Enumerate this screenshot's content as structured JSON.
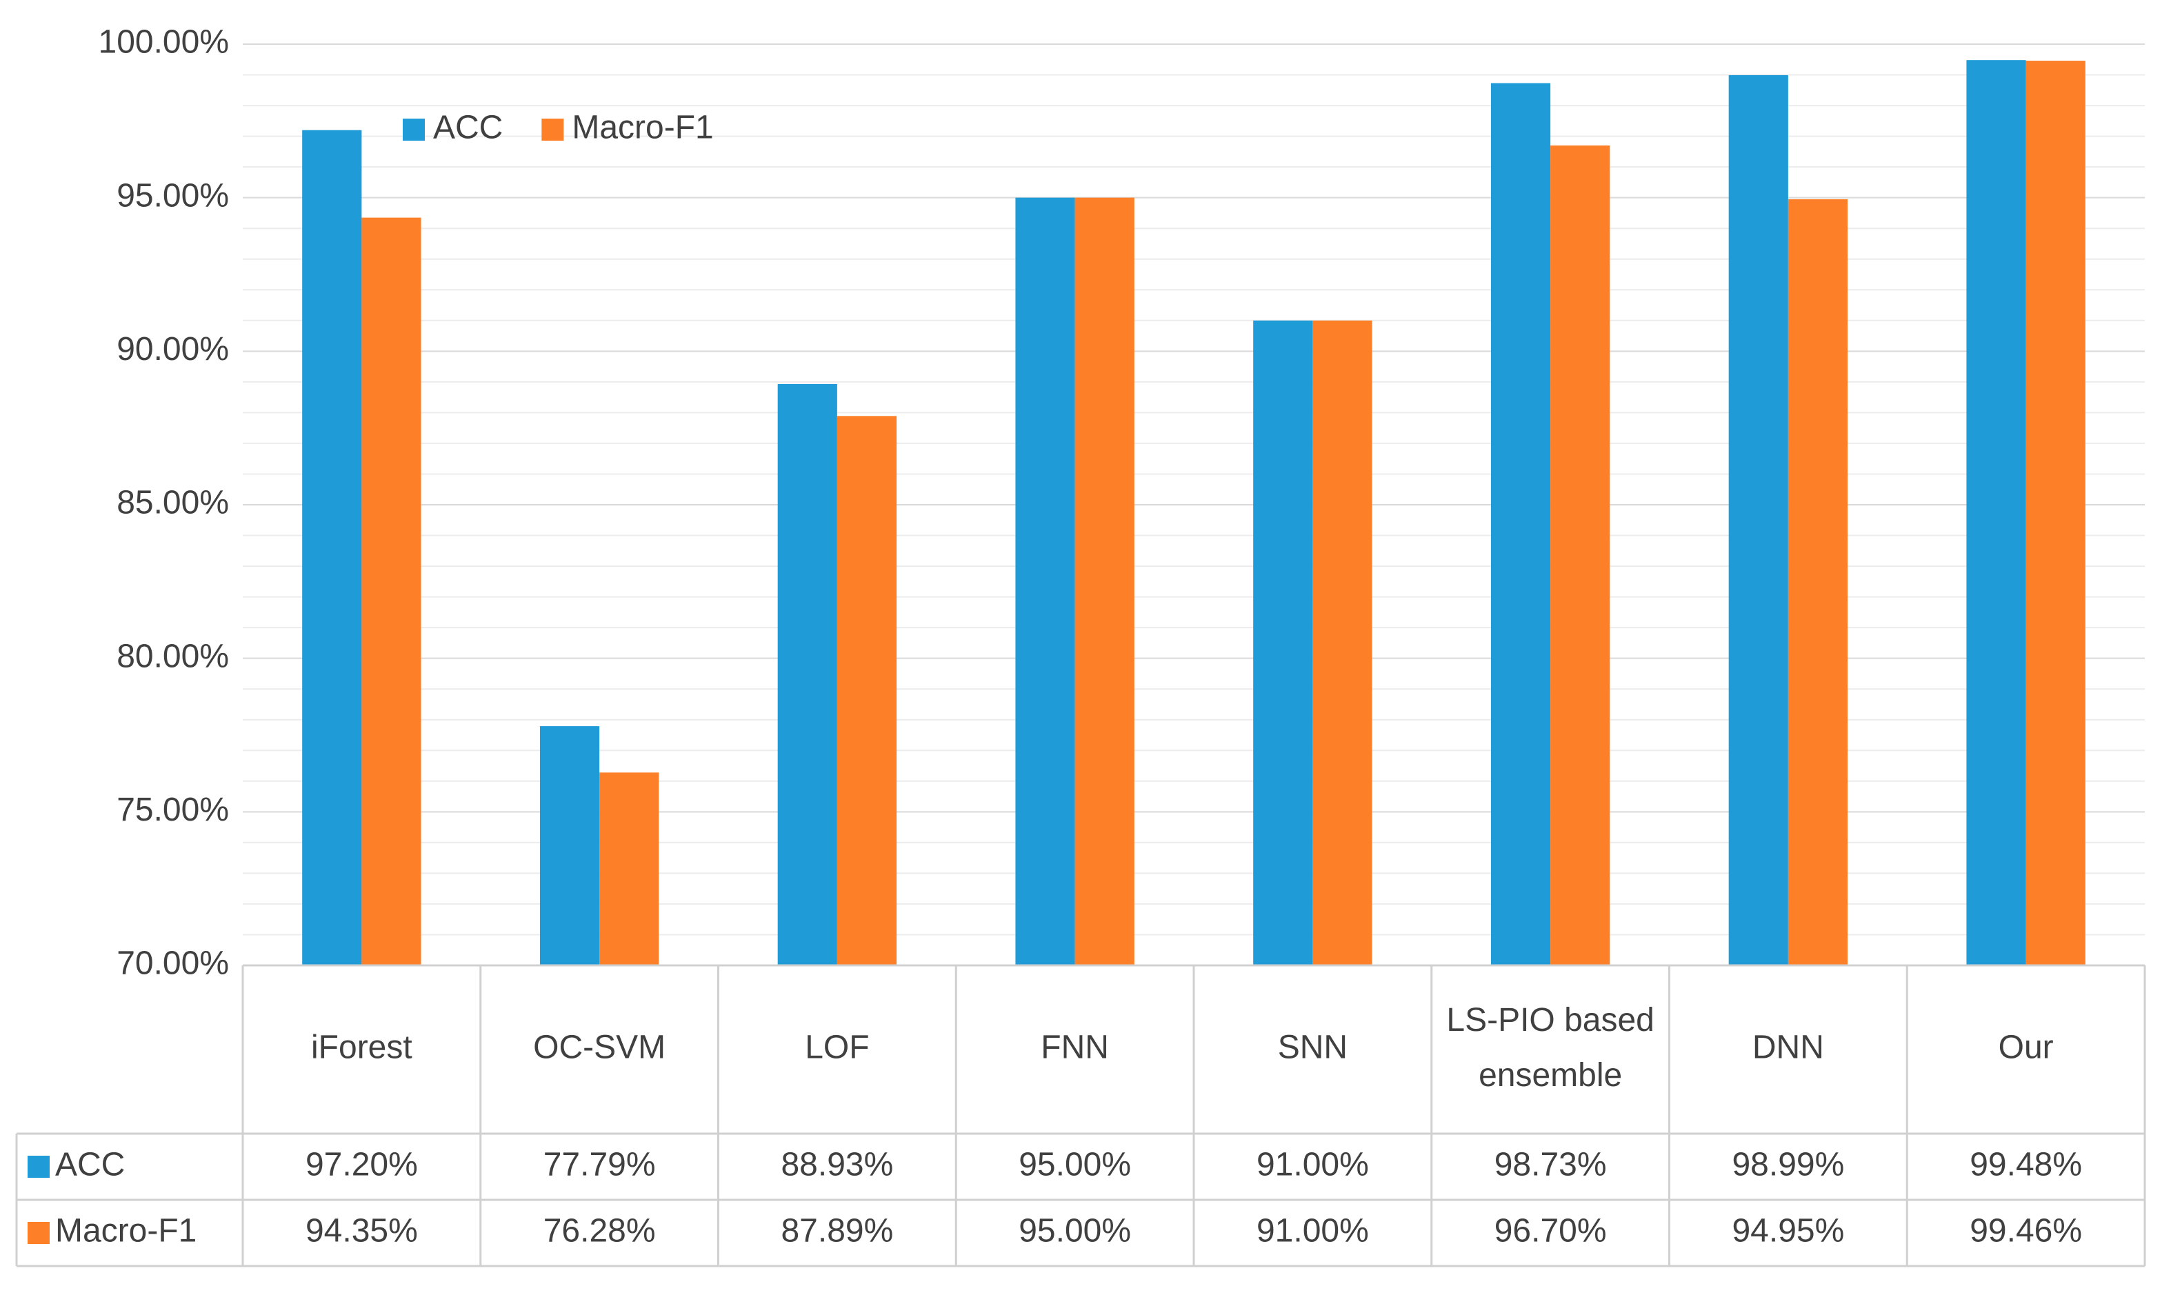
{
  "chart_data": {
    "type": "bar",
    "categories": [
      "iForest",
      "OC-SVM",
      "LOF",
      "FNN",
      "SNN",
      "LS-PIO based ensemble",
      "DNN",
      "Our"
    ],
    "series": [
      {
        "name": "ACC",
        "color": "#1f9bd7",
        "values": [
          97.2,
          77.79,
          88.93,
          95.0,
          91.0,
          98.73,
          98.99,
          99.48
        ],
        "value_labels": [
          "97.20%",
          "77.79%",
          "88.93%",
          "95.00%",
          "91.00%",
          "98.73%",
          "98.99%",
          "99.48%"
        ]
      },
      {
        "name": "Macro-F1",
        "color": "#fd7f27",
        "values": [
          94.35,
          76.28,
          87.89,
          95.0,
          91.0,
          96.7,
          94.95,
          99.46
        ],
        "value_labels": [
          "94.35%",
          "76.28%",
          "87.89%",
          "95.00%",
          "91.00%",
          "96.70%",
          "94.95%",
          "99.46%"
        ]
      }
    ],
    "ylim": [
      70,
      100
    ],
    "yticks": [
      {
        "value": 70,
        "label": "70.00%"
      },
      {
        "value": 75,
        "label": "75.00%"
      },
      {
        "value": 80,
        "label": "80.00%"
      },
      {
        "value": 85,
        "label": "85.00%"
      },
      {
        "value": 90,
        "label": "90.00%"
      },
      {
        "value": 95,
        "label": "95.00%"
      },
      {
        "value": 100,
        "label": "100.00%"
      }
    ],
    "minor_yticks": [
      71,
      72,
      73,
      74,
      76,
      77,
      78,
      79,
      81,
      82,
      83,
      84,
      86,
      87,
      88,
      89,
      91,
      92,
      93,
      94,
      96,
      97,
      98,
      99
    ],
    "grid": true,
    "legend": "upper left",
    "data_table": true
  }
}
